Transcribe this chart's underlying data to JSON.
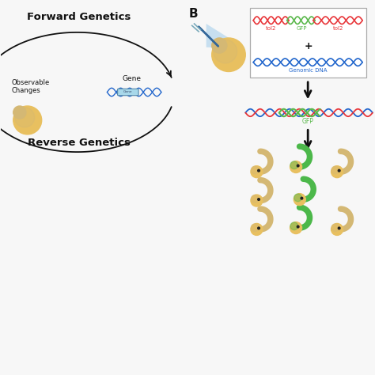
{
  "bg_color": "#f7f7f7",
  "title_A": "Forward Genetics",
  "title_reverse": "Reverse Genetics",
  "label_B": "B",
  "label_tol2_left": "tol2",
  "label_GFP_top": "GFP",
  "label_tol2_right": "tol2",
  "label_genomic": "Genomic DNA",
  "label_gfp_bottom": "GFP",
  "label_gene": "Gene",
  "label_obs": "Observable Changes",
  "label_plus": "+",
  "dna_red": "#e8363a",
  "dna_green": "#5ab84b",
  "dna_blue": "#2266cc",
  "box_color": "#ffffff",
  "box_edge": "#aaaaaa",
  "gene_box_color": "#a8d8ea",
  "fish_tan": "#d4b874",
  "fish_tan_body": "#c8a85a",
  "fish_green": "#4cb84a",
  "yolk_color": "#e8c060",
  "arrow_color": "#111111",
  "text_color": "#111111",
  "needle_color": "#336699"
}
